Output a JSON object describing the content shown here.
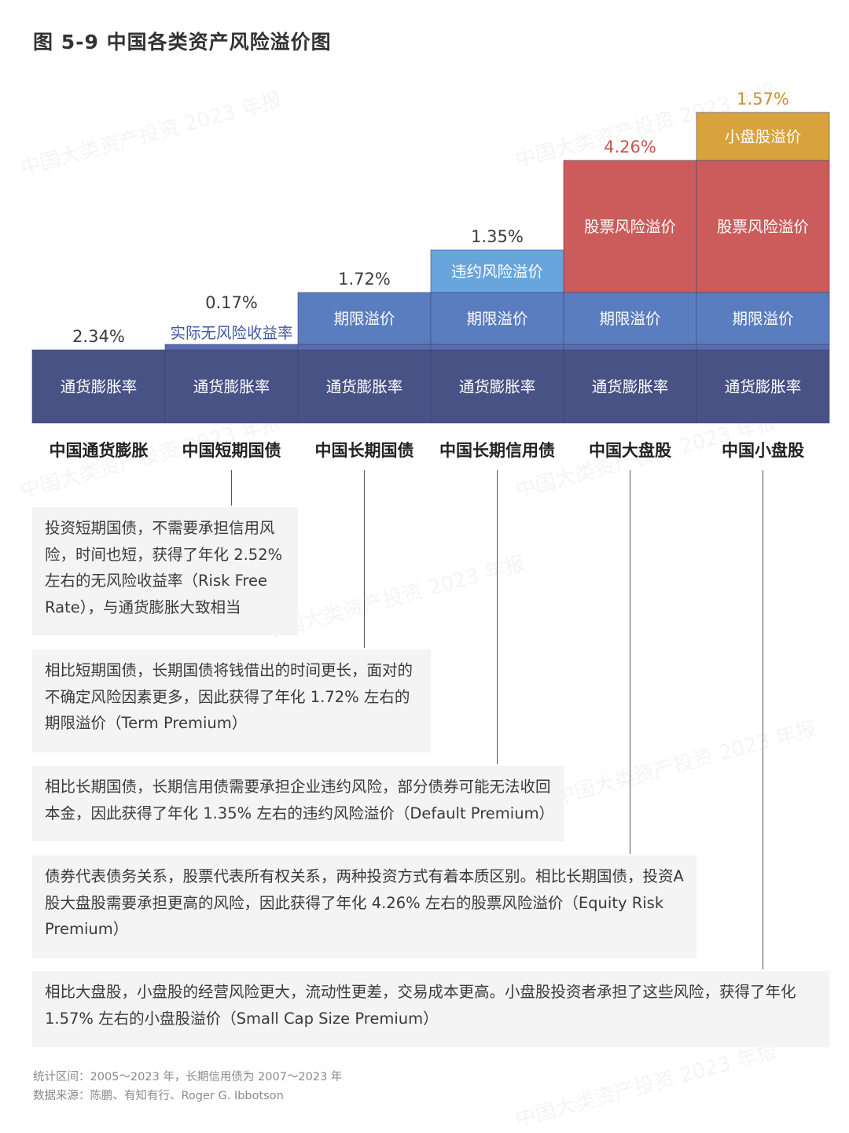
{
  "title": "图 5-9  中国各类资产风险溢价图",
  "watermark": "中国大类资产投资 2023 年报",
  "colors": {
    "inflation": "#485284",
    "riskfree": "#5b6bb0",
    "term": "#5a7dc0",
    "default": "#68a5dc",
    "equity": "#cc5c5c",
    "smallcap": "#d8a23c",
    "label_default": "#3c3c3c",
    "label_equity": "#c9534f",
    "label_smallcap": "#c8932c",
    "label_riskfree": "#3f5aa0"
  },
  "chart_data": {
    "type": "bar",
    "stacked": true,
    "categories": [
      "中国通货膨胀",
      "中国短期国债",
      "中国长期国债",
      "中国长期信用债",
      "中国大盘股",
      "中国小盘股"
    ],
    "series": [
      {
        "name": "通货膨胀率",
        "values": [
          2.34,
          2.34,
          2.34,
          2.34,
          2.34,
          2.34
        ],
        "color_key": "inflation"
      },
      {
        "name": "实际无风险收益率",
        "values": [
          0,
          0.17,
          0.17,
          0.17,
          0.17,
          0.17
        ],
        "color_key": "riskfree"
      },
      {
        "name": "期限溢价",
        "values": [
          0,
          0,
          1.72,
          1.72,
          1.72,
          1.72
        ],
        "color_key": "term"
      },
      {
        "name": "违约风险溢价",
        "values": [
          0,
          0,
          0,
          1.35,
          0,
          0
        ],
        "color_key": "default"
      },
      {
        "name": "股票风险溢价",
        "values": [
          0,
          0,
          0,
          0,
          4.26,
          4.26
        ],
        "color_key": "equity"
      },
      {
        "name": "小盘股溢价",
        "values": [
          0,
          0,
          0,
          0,
          0,
          1.57
        ],
        "color_key": "smallcap"
      }
    ],
    "segment_labels": [
      [
        "通货膨胀率"
      ],
      [
        "通货膨胀率",
        "实际无风险收益率"
      ],
      [
        "通货膨胀率",
        "期限溢价"
      ],
      [
        "通货膨胀率",
        "期限溢价",
        "违约风险溢价"
      ],
      [
        "通货膨胀率",
        "期限溢价",
        "股票风险溢价"
      ],
      [
        "通货膨胀率",
        "期限溢价",
        "股票风险溢价",
        "小盘股溢价"
      ]
    ],
    "top_labels": [
      {
        "text": "2.34%",
        "color_key": "label_default"
      },
      {
        "text": "0.17%",
        "color_key": "label_default"
      },
      {
        "text": "1.72%",
        "color_key": "label_default"
      },
      {
        "text": "1.35%",
        "color_key": "label_default"
      },
      {
        "text": "4.26%",
        "color_key": "label_equity"
      },
      {
        "text": "1.57%",
        "color_key": "label_smallcap"
      }
    ]
  },
  "notes": [
    "投资短期国债，不需要承担信用风险，时间也短，获得了年化 2.52% 左右的无风险收益率（Risk Free Rate），与通货膨胀大致相当",
    "相比短期国债，长期国债将钱借出的时间更长，面对的不确定风险因素更多，因此获得了年化 1.72% 左右的期限溢价（Term Premium）",
    "相比长期国债，长期信用债需要承担企业违约风险，部分债券可能无法收回本金，因此获得了年化 1.35% 左右的违约风险溢价（Default Premium）",
    "债券代表债务关系，股票代表所有权关系，两种投资方式有着本质区别。相比长期国债，投资A股大盘股需要承担更高的风险，因此获得了年化 4.26% 左右的股票风险溢价（Equity Risk Premium）",
    "相比大盘股，小盘股的经营风险更大，流动性更差，交易成本更高。小盘股投资者承担了这些风险，获得了年化 1.57% 左右的小盘股溢价（Small Cap Size Premium）"
  ],
  "footer": {
    "period": "统计区间：2005～2023 年，长期信用债为 2007～2023 年",
    "source": "数据来源：陈鹏、有知有行、Roger G. Ibbotson"
  }
}
